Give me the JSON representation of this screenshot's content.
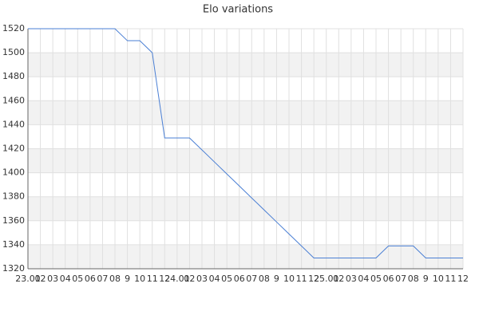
{
  "chart_data": {
    "type": "line",
    "title": "Elo variations",
    "categories": [
      "23.01",
      "02",
      "03",
      "04",
      "05",
      "06",
      "07",
      "08",
      "9",
      "10",
      "11",
      "12",
      "24.01",
      "02",
      "03",
      "04",
      "05",
      "06",
      "07",
      "08",
      "9",
      "10",
      "11",
      "12",
      "25.01",
      "02",
      "03",
      "04",
      "05",
      "06",
      "07",
      "08",
      "9",
      "10",
      "11",
      "12"
    ],
    "series": [
      {
        "name": "Elo",
        "color": "#4a7fd4",
        "values": [
          1520,
          1520,
          1520,
          1520,
          1520,
          1520,
          1520,
          1520,
          1510,
          1510,
          1500,
          1429,
          1429,
          1429,
          1419,
          1409,
          1399,
          1389,
          1379,
          1369,
          1359,
          1349,
          1339,
          1329,
          1329,
          1329,
          1329,
          1329,
          1329,
          1339,
          1339,
          1339,
          1329,
          1329,
          1329,
          1329
        ]
      }
    ],
    "ylim": [
      1320,
      1520
    ],
    "yticks": [
      1320,
      1340,
      1360,
      1380,
      1400,
      1420,
      1440,
      1460,
      1480,
      1500,
      1520
    ],
    "grid": true
  }
}
